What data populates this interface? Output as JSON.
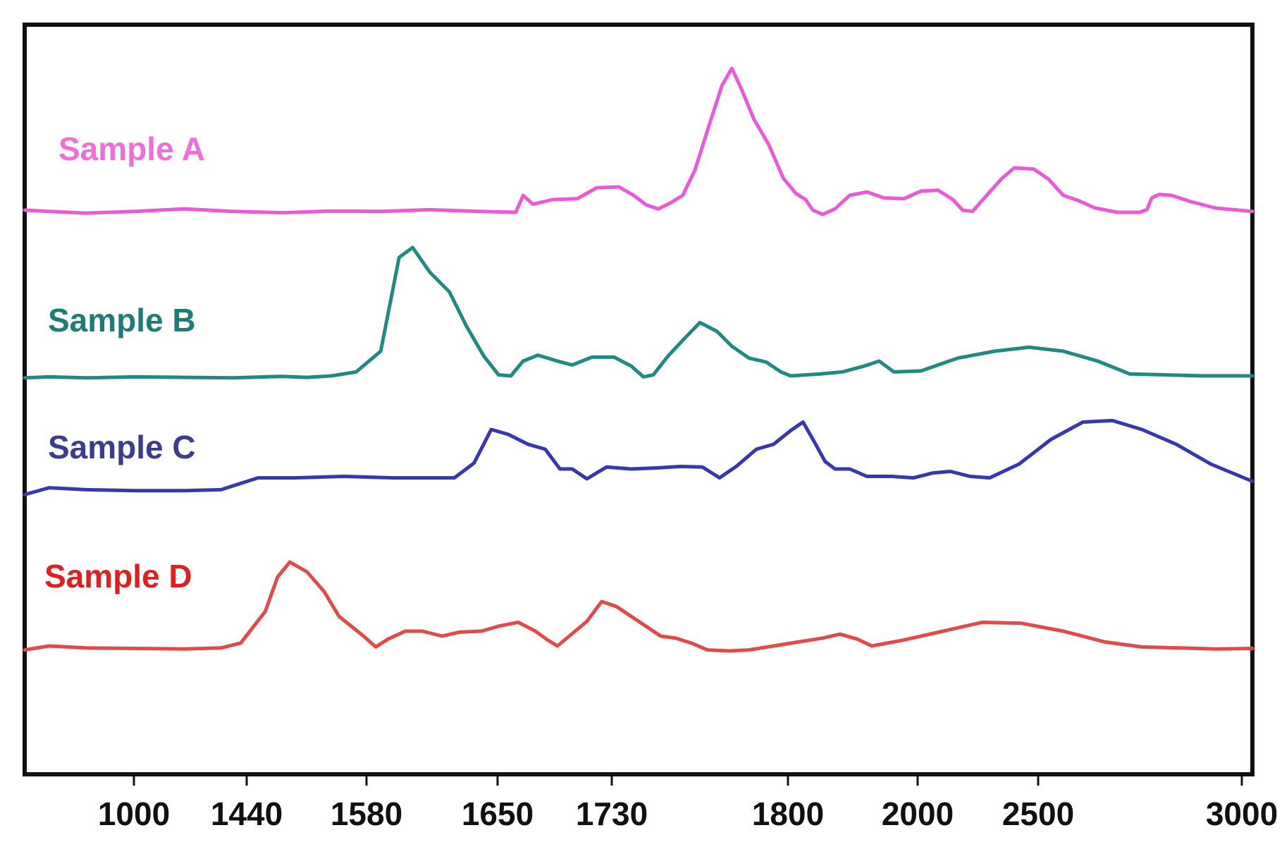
{
  "chart_data": {
    "type": "line",
    "title": "",
    "xlabel": "",
    "ylabel": "",
    "grid": false,
    "legend": "inline labels on left",
    "x_ticks": [
      "1000",
      "1440",
      "1580",
      "1650",
      "1730",
      "1800",
      "2000",
      "2500",
      "3000"
    ],
    "series": [
      {
        "name": "Sample A",
        "color": "#ea5ad6",
        "label_color": "#ee6fd8",
        "baseline": 0.25,
        "points": [
          [
            0.0,
            0.265
          ],
          [
            0.02,
            0.262
          ],
          [
            0.05,
            0.258
          ],
          [
            0.09,
            0.262
          ],
          [
            0.13,
            0.268
          ],
          [
            0.17,
            0.262
          ],
          [
            0.21,
            0.259
          ],
          [
            0.25,
            0.263
          ],
          [
            0.29,
            0.262
          ],
          [
            0.33,
            0.266
          ],
          [
            0.37,
            0.262
          ],
          [
            0.4,
            0.26
          ],
          [
            0.406,
            0.3
          ],
          [
            0.414,
            0.279
          ],
          [
            0.43,
            0.29
          ],
          [
            0.45,
            0.292
          ],
          [
            0.466,
            0.318
          ],
          [
            0.484,
            0.32
          ],
          [
            0.496,
            0.3
          ],
          [
            0.506,
            0.278
          ],
          [
            0.516,
            0.268
          ],
          [
            0.526,
            0.282
          ],
          [
            0.536,
            0.3
          ],
          [
            0.546,
            0.36
          ],
          [
            0.558,
            0.47
          ],
          [
            0.568,
            0.56
          ],
          [
            0.576,
            0.6
          ],
          [
            0.584,
            0.55
          ],
          [
            0.594,
            0.48
          ],
          [
            0.606,
            0.42
          ],
          [
            0.618,
            0.34
          ],
          [
            0.628,
            0.305
          ],
          [
            0.636,
            0.29
          ],
          [
            0.642,
            0.265
          ],
          [
            0.65,
            0.255
          ],
          [
            0.66,
            0.268
          ],
          [
            0.672,
            0.3
          ],
          [
            0.686,
            0.308
          ],
          [
            0.7,
            0.294
          ],
          [
            0.716,
            0.292
          ],
          [
            0.73,
            0.31
          ],
          [
            0.744,
            0.312
          ],
          [
            0.756,
            0.29
          ],
          [
            0.764,
            0.265
          ],
          [
            0.772,
            0.262
          ],
          [
            0.786,
            0.308
          ],
          [
            0.796,
            0.34
          ],
          [
            0.806,
            0.365
          ],
          [
            0.822,
            0.362
          ],
          [
            0.834,
            0.338
          ],
          [
            0.846,
            0.3
          ],
          [
            0.858,
            0.288
          ],
          [
            0.872,
            0.27
          ],
          [
            0.89,
            0.26
          ],
          [
            0.908,
            0.26
          ],
          [
            0.914,
            0.266
          ],
          [
            0.918,
            0.294
          ],
          [
            0.924,
            0.302
          ],
          [
            0.934,
            0.3
          ],
          [
            0.95,
            0.285
          ],
          [
            0.97,
            0.27
          ],
          [
            1.0,
            0.262
          ]
        ]
      },
      {
        "name": "Sample B",
        "color": "#208a82",
        "label_color": "#1d7c74",
        "baseline": 0.25,
        "points": [
          [
            0.0,
            0.256
          ],
          [
            0.02,
            0.258
          ],
          [
            0.05,
            0.256
          ],
          [
            0.09,
            0.258
          ],
          [
            0.13,
            0.257
          ],
          [
            0.17,
            0.256
          ],
          [
            0.21,
            0.259
          ],
          [
            0.23,
            0.257
          ],
          [
            0.25,
            0.26
          ],
          [
            0.27,
            0.268
          ],
          [
            0.29,
            0.31
          ],
          [
            0.305,
            0.5
          ],
          [
            0.316,
            0.52
          ],
          [
            0.33,
            0.47
          ],
          [
            0.346,
            0.43
          ],
          [
            0.36,
            0.36
          ],
          [
            0.374,
            0.3
          ],
          [
            0.386,
            0.262
          ],
          [
            0.396,
            0.26
          ],
          [
            0.406,
            0.29
          ],
          [
            0.418,
            0.302
          ],
          [
            0.434,
            0.29
          ],
          [
            0.446,
            0.282
          ],
          [
            0.462,
            0.298
          ],
          [
            0.48,
            0.298
          ],
          [
            0.494,
            0.28
          ],
          [
            0.504,
            0.258
          ],
          [
            0.512,
            0.262
          ],
          [
            0.524,
            0.3
          ],
          [
            0.536,
            0.332
          ],
          [
            0.55,
            0.368
          ],
          [
            0.564,
            0.35
          ],
          [
            0.576,
            0.32
          ],
          [
            0.59,
            0.296
          ],
          [
            0.604,
            0.288
          ],
          [
            0.616,
            0.268
          ],
          [
            0.624,
            0.26
          ],
          [
            0.648,
            0.264
          ],
          [
            0.666,
            0.268
          ],
          [
            0.684,
            0.28
          ],
          [
            0.696,
            0.29
          ],
          [
            0.708,
            0.268
          ],
          [
            0.73,
            0.27
          ],
          [
            0.76,
            0.296
          ],
          [
            0.79,
            0.31
          ],
          [
            0.818,
            0.318
          ],
          [
            0.846,
            0.31
          ],
          [
            0.874,
            0.29
          ],
          [
            0.9,
            0.264
          ],
          [
            0.93,
            0.262
          ],
          [
            0.96,
            0.26
          ],
          [
            0.98,
            0.26
          ],
          [
            1.0,
            0.26
          ]
        ]
      },
      {
        "name": "Sample C",
        "color": "#3737b2",
        "label_color": "#3c3c8f",
        "baseline": 0.25,
        "points": [
          [
            0.0,
            0.248
          ],
          [
            0.02,
            0.262
          ],
          [
            0.05,
            0.258
          ],
          [
            0.09,
            0.256
          ],
          [
            0.13,
            0.256
          ],
          [
            0.16,
            0.258
          ],
          [
            0.175,
            0.27
          ],
          [
            0.19,
            0.282
          ],
          [
            0.22,
            0.282
          ],
          [
            0.26,
            0.285
          ],
          [
            0.3,
            0.282
          ],
          [
            0.33,
            0.282
          ],
          [
            0.35,
            0.282
          ],
          [
            0.366,
            0.312
          ],
          [
            0.38,
            0.38
          ],
          [
            0.394,
            0.37
          ],
          [
            0.41,
            0.35
          ],
          [
            0.424,
            0.34
          ],
          [
            0.436,
            0.3
          ],
          [
            0.446,
            0.3
          ],
          [
            0.458,
            0.28
          ],
          [
            0.474,
            0.304
          ],
          [
            0.494,
            0.3
          ],
          [
            0.514,
            0.302
          ],
          [
            0.534,
            0.305
          ],
          [
            0.552,
            0.304
          ],
          [
            0.566,
            0.282
          ],
          [
            0.58,
            0.306
          ],
          [
            0.596,
            0.34
          ],
          [
            0.61,
            0.35
          ],
          [
            0.624,
            0.378
          ],
          [
            0.634,
            0.395
          ],
          [
            0.642,
            0.36
          ],
          [
            0.652,
            0.315
          ],
          [
            0.66,
            0.3
          ],
          [
            0.672,
            0.3
          ],
          [
            0.686,
            0.285
          ],
          [
            0.706,
            0.285
          ],
          [
            0.724,
            0.282
          ],
          [
            0.74,
            0.292
          ],
          [
            0.754,
            0.295
          ],
          [
            0.77,
            0.285
          ],
          [
            0.786,
            0.282
          ],
          [
            0.81,
            0.31
          ],
          [
            0.836,
            0.36
          ],
          [
            0.862,
            0.395
          ],
          [
            0.886,
            0.398
          ],
          [
            0.91,
            0.38
          ],
          [
            0.938,
            0.35
          ],
          [
            0.966,
            0.31
          ],
          [
            1.0,
            0.275
          ]
        ]
      },
      {
        "name": "Sample D",
        "color": "#e24a4a",
        "label_color": "#e01e1e",
        "baseline": 0.25,
        "points": [
          [
            0.0,
            0.262
          ],
          [
            0.02,
            0.27
          ],
          [
            0.05,
            0.266
          ],
          [
            0.09,
            0.265
          ],
          [
            0.13,
            0.264
          ],
          [
            0.16,
            0.266
          ],
          [
            0.176,
            0.276
          ],
          [
            0.196,
            0.34
          ],
          [
            0.206,
            0.41
          ],
          [
            0.216,
            0.44
          ],
          [
            0.23,
            0.42
          ],
          [
            0.244,
            0.38
          ],
          [
            0.256,
            0.33
          ],
          [
            0.266,
            0.31
          ],
          [
            0.276,
            0.29
          ],
          [
            0.286,
            0.268
          ],
          [
            0.296,
            0.284
          ],
          [
            0.31,
            0.3
          ],
          [
            0.324,
            0.3
          ],
          [
            0.34,
            0.29
          ],
          [
            0.354,
            0.298
          ],
          [
            0.372,
            0.3
          ],
          [
            0.386,
            0.31
          ],
          [
            0.402,
            0.318
          ],
          [
            0.416,
            0.3
          ],
          [
            0.426,
            0.282
          ],
          [
            0.434,
            0.27
          ],
          [
            0.446,
            0.295
          ],
          [
            0.458,
            0.32
          ],
          [
            0.47,
            0.36
          ],
          [
            0.482,
            0.35
          ],
          [
            0.494,
            0.33
          ],
          [
            0.506,
            0.31
          ],
          [
            0.518,
            0.29
          ],
          [
            0.53,
            0.286
          ],
          [
            0.544,
            0.275
          ],
          [
            0.556,
            0.262
          ],
          [
            0.574,
            0.26
          ],
          [
            0.59,
            0.262
          ],
          [
            0.61,
            0.27
          ],
          [
            0.63,
            0.278
          ],
          [
            0.65,
            0.286
          ],
          [
            0.664,
            0.294
          ],
          [
            0.678,
            0.284
          ],
          [
            0.69,
            0.27
          ],
          [
            0.716,
            0.282
          ],
          [
            0.748,
            0.3
          ],
          [
            0.78,
            0.318
          ],
          [
            0.812,
            0.316
          ],
          [
            0.846,
            0.3
          ],
          [
            0.88,
            0.278
          ],
          [
            0.91,
            0.268
          ],
          [
            0.94,
            0.266
          ],
          [
            0.97,
            0.264
          ],
          [
            1.0,
            0.265
          ]
        ]
      }
    ]
  }
}
